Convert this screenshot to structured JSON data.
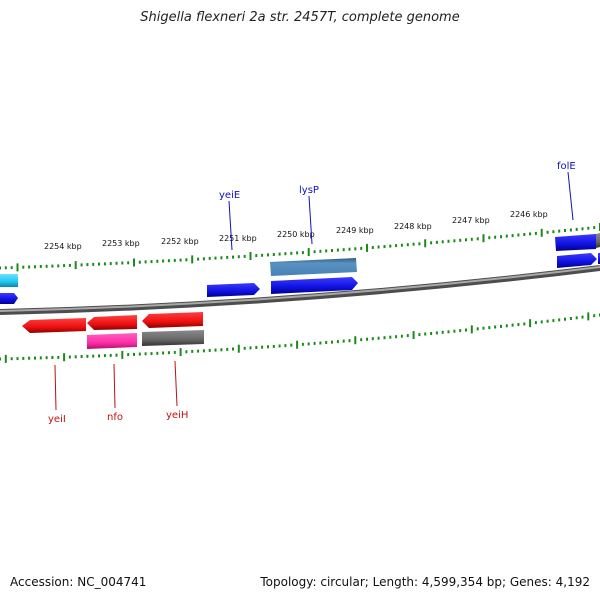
{
  "title": "Shigella flexneri 2a str. 2457T, complete genome",
  "footer": {
    "accession": "Accession: NC_004741",
    "topology": "Topology: circular; Length: 4,599,354 bp; Genes: 4,192"
  },
  "ruler": {
    "unit": "kbp",
    "labels": [
      "2254 kbp",
      "2253 kbp",
      "2252 kbp",
      "2251 kbp",
      "2250 kbp",
      "2249 kbp",
      "2248 kbp",
      "2247 kbp",
      "2246 kbp"
    ]
  },
  "genes_forward": [
    {
      "name": "yeiE",
      "color": "#1010e0"
    },
    {
      "name": "lysP",
      "color": "#1010e0"
    },
    {
      "name": "folE",
      "color": "#1010e0"
    }
  ],
  "genes_reverse": [
    {
      "name": "yeiI",
      "color": "#e01010"
    },
    {
      "name": "nfo",
      "color": "#e01010"
    },
    {
      "name": "yeiH",
      "color": "#e01010"
    }
  ],
  "colors": {
    "forward_cds": "#1010e0",
    "reverse_cds": "#ee1010",
    "pink_feature": "#ff2fa8",
    "gray_feature": "#666666",
    "steelblue_feature": "#4682b4",
    "cyan_feature": "#1ec8ee",
    "backbone": "#808080",
    "ticks": "#1a8a1a"
  }
}
